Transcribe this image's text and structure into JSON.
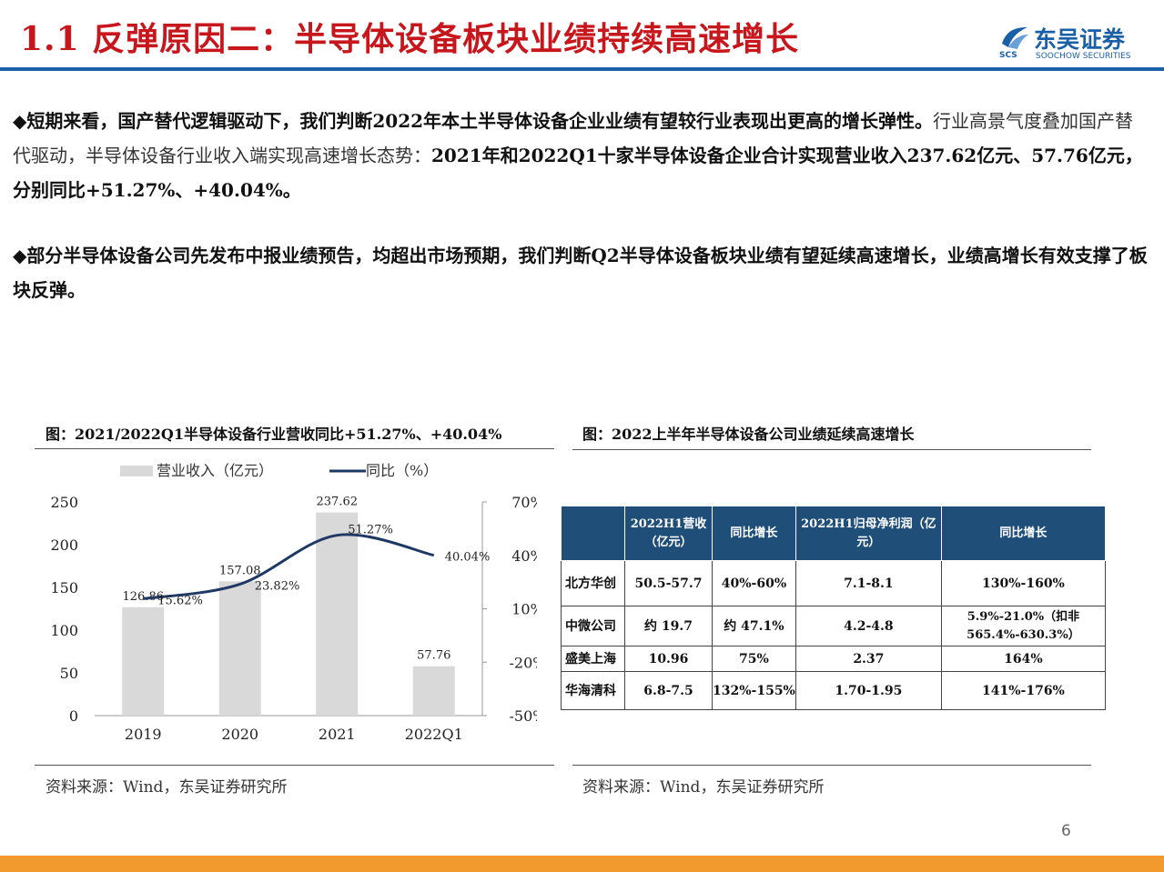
{
  "header": {
    "title": "1.1 反弹原因二：半导体设备板块业绩持续高速增长",
    "logo": {
      "cn": "东吴证券",
      "en": "SOOCHOW SECURITIES",
      "abbr": "SCS"
    }
  },
  "body": {
    "p1_bold": "◆短期来看，国产替代逻辑驱动下，我们判断2022年本土半导体设备企业业绩有望较行业表现出更高的增长弹性。",
    "p1_plain": "行业高景气度叠加国产替代驱动，半导体设备行业收入端实现高速增长态势：",
    "p1_bold2": "2021年和2022Q1十家半导体设备企业合计实现营业收入237.62亿元、57.76亿元，分别同比+51.27%、+40.04%。",
    "p2_bold": "◆部分半导体设备公司先发布中报业绩预告，均超出市场预期，我们判断Q2半导体设备板块业绩有望延续高速增长，业绩高增长有效支撑了板块反弹。"
  },
  "figure_left": {
    "title": "图：2021/2022Q1半导体设备行业营收同比+51.27%、+40.04%",
    "source": "资料来源：Wind，东吴证券研究所"
  },
  "figure_right": {
    "title": "图：2022上半年半导体设备公司业绩延续高速增长",
    "source": "资料来源：Wind，东吴证券研究所"
  },
  "chart_data": {
    "type": "bar+line",
    "categories": [
      "2019",
      "2020",
      "2021",
      "2022Q1"
    ],
    "series": [
      {
        "name": "营业收入（亿元）",
        "type": "bar",
        "axis": "left",
        "values": [
          126.86,
          157.08,
          237.62,
          57.76
        ],
        "labels": [
          "126.86",
          "157.08",
          "237.62",
          "57.76"
        ],
        "color": "#d9d9d9"
      },
      {
        "name": "同比（%）",
        "type": "line",
        "axis": "right",
        "values": [
          15.62,
          23.82,
          51.27,
          40.04
        ],
        "labels": [
          "15.62%",
          "23.82%",
          "51.27%",
          "40.04%"
        ],
        "color": "#1f3864"
      }
    ],
    "y_left": {
      "min": 0,
      "max": 250,
      "ticks": [
        "0",
        "50",
        "100",
        "150",
        "200",
        "250"
      ],
      "tick_values": [
        0,
        50,
        100,
        150,
        200,
        250
      ]
    },
    "y_right": {
      "min": -50,
      "max": 70,
      "ticks": [
        "-50%",
        "-20%",
        "10%",
        "40%",
        "70%"
      ],
      "tick_values": [
        -50,
        -20,
        10,
        40,
        70
      ]
    },
    "legend_position": "top",
    "grid": false
  },
  "table": {
    "headers": [
      "",
      "2022H1营收（亿元）",
      "同比增长",
      "2022H1归母净利润（亿元）",
      "同比增长"
    ],
    "rows": [
      [
        "北方华创",
        "50.5-57.7",
        "40%-60%",
        "7.1-8.1",
        "130%-160%"
      ],
      [
        "中微公司",
        "约 19.7",
        "约 47.1%",
        "4.2-4.8",
        "5.9%-21.0%（扣非565.4%-630.3%）"
      ],
      [
        "盛美上海",
        "10.96",
        "75%",
        "2.37",
        "164%"
      ],
      [
        "华海清科",
        "6.8-7.5",
        "132%-155%",
        "1.70-1.95",
        "141%-176%"
      ]
    ]
  },
  "footer": {
    "page_number": "6"
  },
  "colors": {
    "title_red": "#c8161d",
    "brand_blue": "#1b5fa6",
    "table_header": "#1f4e79",
    "footer_orange": "#f29a2e"
  }
}
